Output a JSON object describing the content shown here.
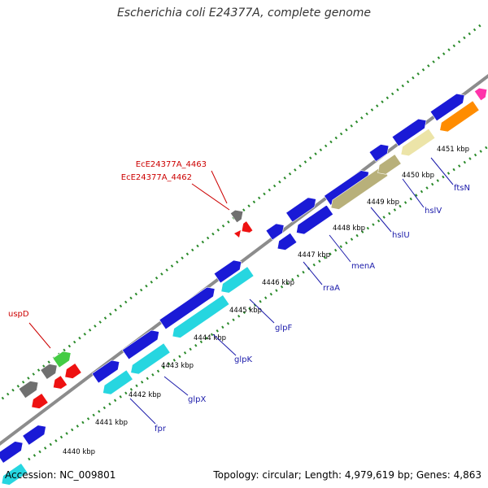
{
  "header": {
    "title": "Escherichia coli E24377A, complete genome"
  },
  "footer": {
    "accession": "Accession: NC_009801",
    "summary": "Topology: circular; Length: 4,979,619 bp; Genes: 4,863"
  },
  "ticks": [
    {
      "label": "4440 kbp"
    },
    {
      "label": "4441 kbp"
    },
    {
      "label": "4442 kbp"
    },
    {
      "label": "4443 kbp"
    },
    {
      "label": "4444 kbp"
    },
    {
      "label": "4445 kbp"
    },
    {
      "label": "4446 kbp"
    },
    {
      "label": "4447 kbp"
    },
    {
      "label": "4448 kbp"
    },
    {
      "label": "4449 kbp"
    },
    {
      "label": "4450 kbp"
    },
    {
      "label": "4451 kbp"
    }
  ],
  "gene_labels": [
    {
      "name": "uspD",
      "color": "#cc0000"
    },
    {
      "name": "EcE24377A_4463",
      "color": "#cc0000"
    },
    {
      "name": "EcE24377A_4462",
      "color": "#cc0000"
    },
    {
      "name": "fpr",
      "color": "#1a1aaa"
    },
    {
      "name": "glpX",
      "color": "#1a1aaa"
    },
    {
      "name": "glpK",
      "color": "#1a1aaa"
    },
    {
      "name": "glpF",
      "color": "#1a1aaa"
    },
    {
      "name": "rraA",
      "color": "#1a1aaa"
    },
    {
      "name": "menA",
      "color": "#1a1aaa"
    },
    {
      "name": "hslU",
      "color": "#1a1aaa"
    },
    {
      "name": "hslV",
      "color": "#1a1aaa"
    },
    {
      "name": "ftsN",
      "color": "#1a1aaa"
    }
  ],
  "colors": {
    "backbone": "#8c8c8c",
    "dots": "#2a8a2a",
    "cds": "#1a1ad6",
    "cyan": "#26d6e0",
    "khaki": "#b8b07a",
    "khaki_light": "#ece4a8",
    "orange": "#ff8c00",
    "gray": "#707070",
    "red": "#ee1111",
    "green": "#44cc44",
    "magenta": "#ff33aa"
  }
}
